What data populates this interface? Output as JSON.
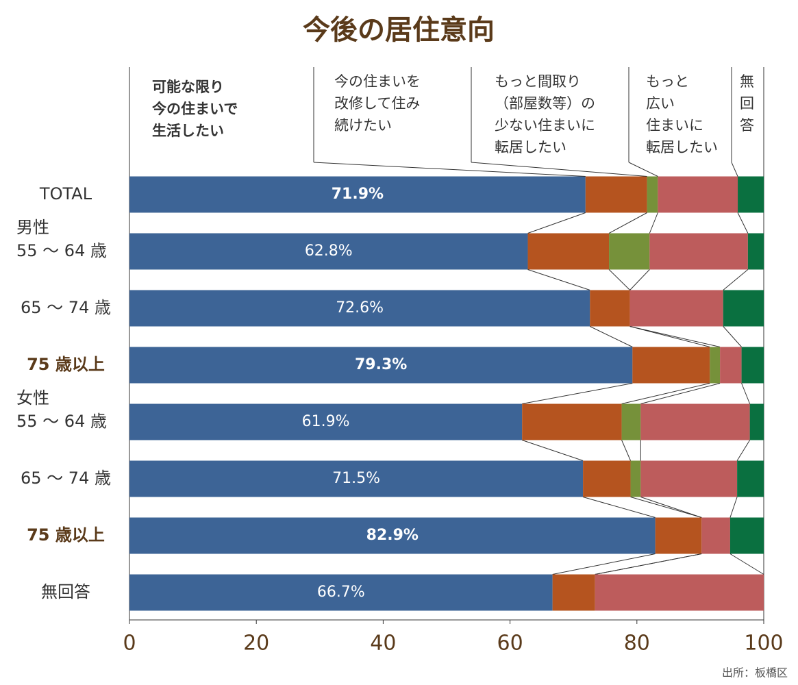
{
  "chart_data": {
    "type": "stacked-bar-horizontal",
    "title": "今後の居住意向",
    "source": "出所：板橋区",
    "categories": [
      "TOTAL",
      "男性\n55 ～ 64 歳",
      "65 ～ 74 歳",
      "75 歳以上",
      "女性\n55 ～ 64 歳",
      "65 ～ 74 歳",
      "75 歳以上",
      "無回答"
    ],
    "bold_categories": [
      false,
      false,
      false,
      true,
      false,
      false,
      true,
      false
    ],
    "bold_values": [
      true,
      false,
      false,
      true,
      false,
      false,
      true,
      false
    ],
    "series": [
      {
        "name": "可能な限り\n今の住まいで\n生活したい",
        "color": "#3d6496",
        "values": [
          71.9,
          62.8,
          72.6,
          79.3,
          61.9,
          71.5,
          82.9,
          66.7
        ],
        "value_labels": [
          "71.9%",
          "62.8%",
          "72.6%",
          "79.3%",
          "61.9%",
          "71.5%",
          "82.9%",
          "66.7%"
        ]
      },
      {
        "name": "今の住まいを\n改修して住み\n続けたい",
        "color": "#b5541f",
        "values": [
          9.7,
          12.8,
          6.3,
          12.2,
          15.7,
          7.5,
          7.3,
          6.7
        ]
      },
      {
        "name": "もっと間取り\n（部屋数等）の\n少ない住まいに\n転居したい",
        "color": "#76913a",
        "values": [
          1.7,
          6.4,
          0,
          1.6,
          3.0,
          1.6,
          0,
          0
        ]
      },
      {
        "name": "もっと\n広い\n住まいに\n転居したい",
        "color": "#bd5c5c",
        "values": [
          12.6,
          15.5,
          14.7,
          3.4,
          17.2,
          15.2,
          4.5,
          26.6
        ]
      },
      {
        "name": "無\n回\n答",
        "color": "#0a7040",
        "values": [
          4.1,
          2.5,
          6.4,
          3.5,
          2.2,
          4.2,
          5.3,
          0
        ]
      }
    ],
    "xlim": [
      0,
      100
    ],
    "xticks": [
      0,
      20,
      40,
      60,
      80,
      100
    ]
  }
}
